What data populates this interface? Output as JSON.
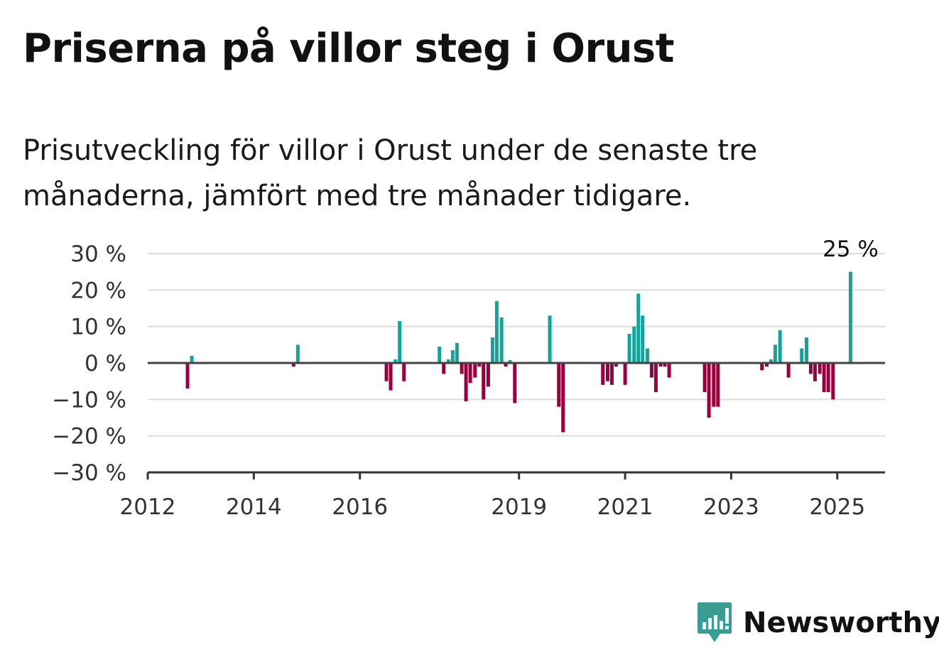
{
  "title": "Priserna på villor steg i Orust",
  "subtitle": "Prisutveckling för villor i Orust under de senaste tre månaderna, jämfört med tre månader tidigare.",
  "colors": {
    "positive": "#12a39a",
    "negative": "#99003e",
    "brand": "#3a9d94"
  },
  "brand": {
    "name": "Newsworthy",
    "icon": "newsworthy-logo-icon"
  },
  "chart_data": {
    "type": "bar",
    "title": "",
    "xlabel": "",
    "ylabel": "",
    "ylim": [
      -30,
      30
    ],
    "yticks": [
      30,
      20,
      10,
      0,
      -10,
      -20,
      -30
    ],
    "ytick_labels": [
      "30 %",
      "20 %",
      "10 %",
      "0 %",
      "−10 %",
      "−20 %",
      "−30 %"
    ],
    "xticks": [
      2012,
      2014,
      2016,
      2019,
      2021,
      2023,
      2025
    ],
    "xtick_labels": [
      "2012",
      "2014",
      "2016",
      "2019",
      "2021",
      "2023",
      "2025"
    ],
    "xlim": [
      2012.0,
      2025.9
    ],
    "grid": true,
    "annotation": {
      "text": "25 %",
      "x": 2025.25
    },
    "series": [
      {
        "x": [
          2012.75,
          2012.83,
          2014.75,
          2014.83,
          2016.5,
          2016.58,
          2016.67,
          2016.75,
          2016.83,
          2017.5,
          2017.58,
          2017.67,
          2017.75,
          2017.83,
          2017.92,
          2018.0,
          2018.08,
          2018.17,
          2018.25,
          2018.33,
          2018.42,
          2018.5,
          2018.58,
          2018.67,
          2018.75,
          2018.83,
          2018.92,
          2019.58,
          2019.75,
          2019.83,
          2020.58,
          2020.67,
          2020.75,
          2020.83,
          2021.0,
          2021.08,
          2021.17,
          2021.25,
          2021.33,
          2021.42,
          2021.5,
          2021.58,
          2021.67,
          2021.75,
          2021.83,
          2022.5,
          2022.58,
          2022.67,
          2022.75,
          2023.58,
          2023.67,
          2023.75,
          2023.83,
          2023.92,
          2024.08,
          2024.33,
          2024.42,
          2024.5,
          2024.58,
          2024.67,
          2024.75,
          2024.83,
          2024.92,
          2025.25
        ],
        "values": [
          -7,
          2,
          -1,
          5,
          -5,
          -7.5,
          1,
          11.5,
          -5,
          4.5,
          -3,
          1,
          3.5,
          5.5,
          -3,
          -10.5,
          -5.5,
          -4,
          -1,
          -10,
          -6.5,
          7,
          17,
          12.5,
          -1,
          0.8,
          -11,
          13,
          -12,
          -19,
          -6,
          -5,
          -6,
          -1,
          -6,
          8,
          10,
          19,
          13,
          4,
          -4,
          -8,
          -1,
          -1,
          -4,
          -8,
          -15,
          -12,
          -12,
          -2,
          -1,
          1,
          5,
          9,
          -4,
          4,
          7,
          -3,
          -5,
          -3,
          -8,
          -8,
          -10,
          25
        ]
      }
    ]
  }
}
